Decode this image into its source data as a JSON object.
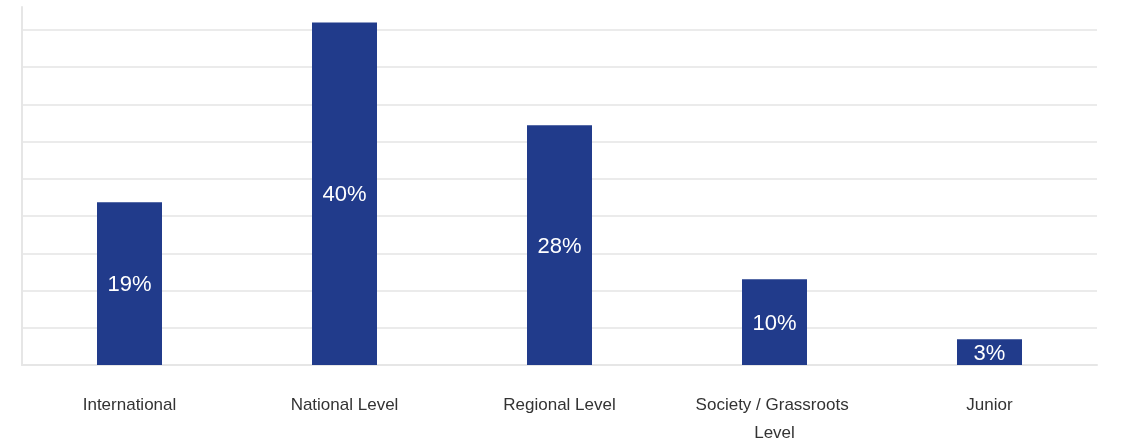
{
  "chart_data": {
    "type": "bar",
    "categories": [
      "International",
      "National Level",
      "Regional Level",
      "Society / Grassroots Level",
      "Junior"
    ],
    "values": [
      19,
      40,
      28,
      10,
      3
    ],
    "value_labels": [
      "19%",
      "40%",
      "28%",
      "10%",
      "3%"
    ],
    "color": "#213b8b",
    "ylim": [
      0,
      41.8
    ],
    "yticks": [
      {
        "value": 0,
        "label": null
      },
      {
        "value": 4.3,
        "label": null
      },
      {
        "value": 8.7,
        "label": null
      },
      {
        "value": 13.0,
        "label": null
      },
      {
        "value": 17.4,
        "label": null
      },
      {
        "value": 21.7,
        "label": null
      },
      {
        "value": 26.1,
        "label": null
      },
      {
        "value": 30.4,
        "label": null
      },
      {
        "value": 34.8,
        "label": null
      },
      {
        "value": 39.1,
        "label": null
      }
    ],
    "grid": "y",
    "tick_labels": "x"
  }
}
